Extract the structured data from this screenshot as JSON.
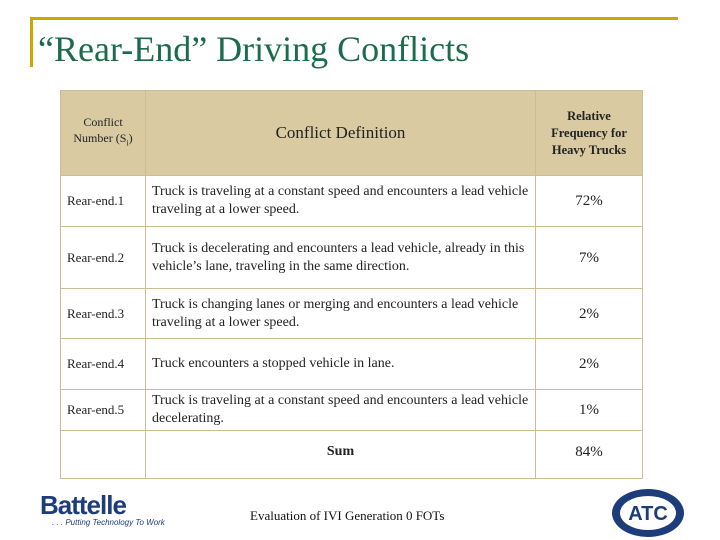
{
  "title": "“Rear-End” Driving Conflicts",
  "table": {
    "header": [
      [
        "Conflict Number (S",
        "i",
        ")"
      ],
      "Conflict Definition",
      "Relative Frequency for Heavy Trucks"
    ],
    "rows": [
      [
        "Rear-end.1",
        "Truck is traveling at a constant speed and encounters a lead vehicle traveling at a lower speed.",
        "72%"
      ],
      [
        "Rear-end.2",
        "Truck is decelerating and encounters a lead vehicle, already in this vehicle’s lane, traveling in the same direction.",
        "7%"
      ],
      [
        "Rear-end.3",
        "Truck is changing lanes or merging and encounters a lead vehicle traveling at a lower speed.",
        "2%"
      ],
      [
        "Rear-end.4",
        "Truck encounters a stopped vehicle in lane.",
        "2%"
      ],
      [
        "Rear-end.5",
        "Truck is traveling at a constant speed and encounters a lead vehicle decelerating.",
        "1%"
      ]
    ],
    "sum": {
      "label": "Sum",
      "value": "84%"
    }
  },
  "footer": {
    "text": "Evaluation of IVI Generation 0 FOTs",
    "left_logo": {
      "name": "Battelle",
      "tagline": ". . . Putting Technology To Work"
    },
    "right_logo": {
      "name": "ATC"
    }
  }
}
